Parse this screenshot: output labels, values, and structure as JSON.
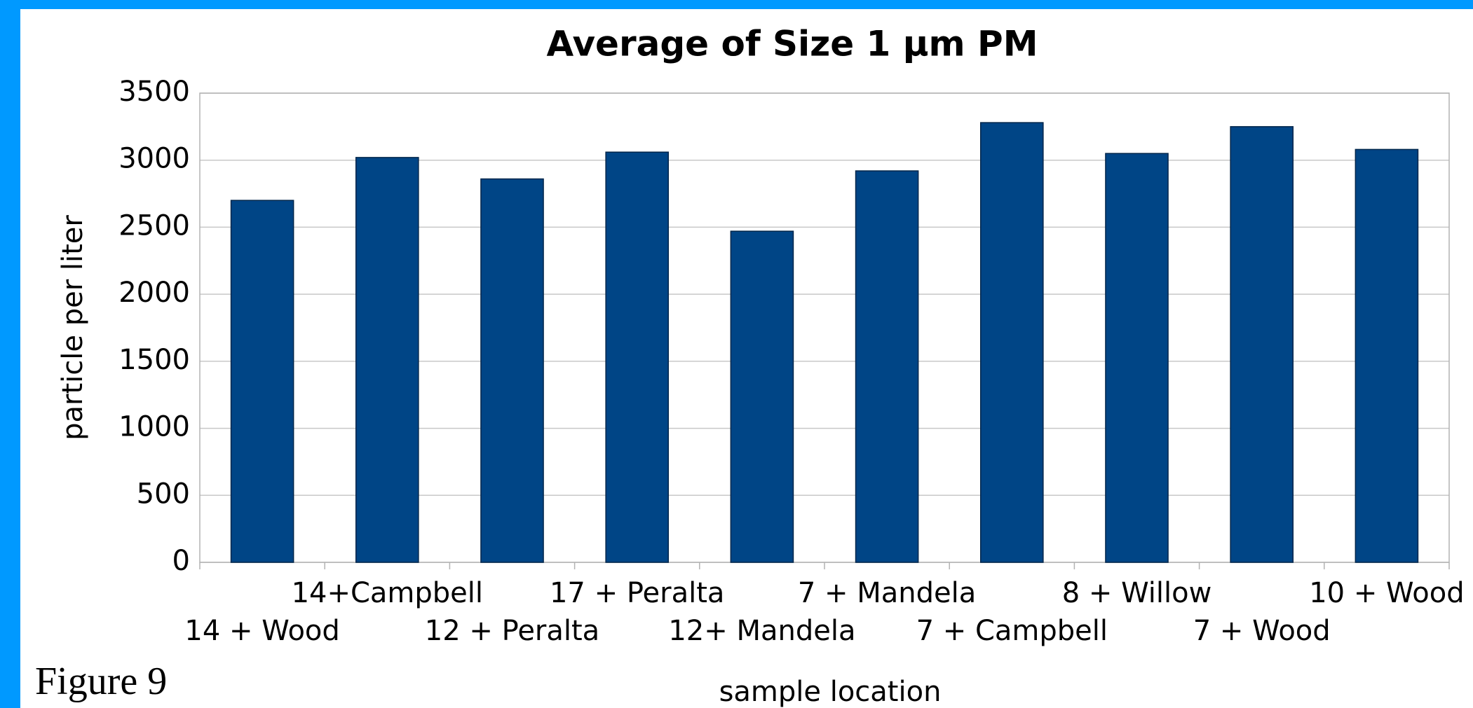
{
  "chart_data": {
    "type": "bar",
    "title": "Average of Size 1 µm PM",
    "x_label": "sample location",
    "y_label": "particle per liter",
    "annotation": "Figure 9",
    "categories": [
      "14 + Wood",
      "14+Campbell",
      "12 + Peralta",
      "17 + Peralta",
      "12+ Mandela",
      "7 + Mandela",
      "7 + Campbell",
      "8 + Willow",
      "7 + Wood",
      "10 + Wood"
    ],
    "values": [
      2700,
      3020,
      2860,
      3060,
      2470,
      2920,
      3280,
      3050,
      3250,
      3080
    ],
    "color": "#004586",
    "ylim": [
      0,
      3500
    ],
    "yticks": [
      0,
      500,
      1000,
      1500,
      2000,
      2500,
      3000,
      3500
    ],
    "grid": true
  }
}
